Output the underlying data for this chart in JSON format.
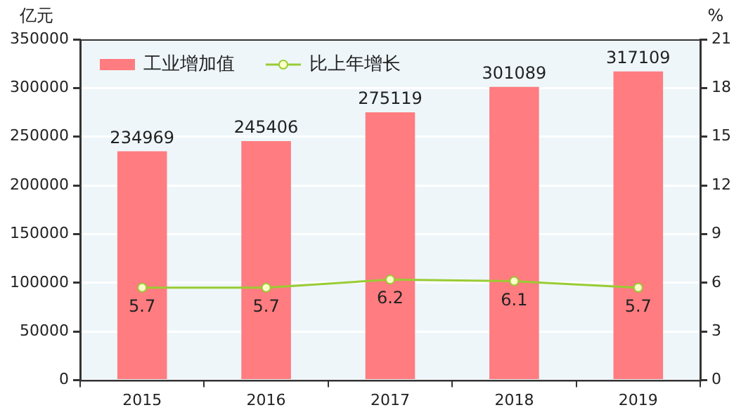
{
  "chart_data": {
    "type": "bar",
    "categories": [
      "2015",
      "2016",
      "2017",
      "2018",
      "2019"
    ],
    "ylabel": "亿元",
    "y2label": "%",
    "series": [
      {
        "name": "工业增加值",
        "color": "#ff7c80",
        "values": [
          234969,
          245406,
          275119,
          301089,
          317109
        ]
      },
      {
        "name": "比上年增长",
        "type": "line",
        "axis": "y2",
        "color": "#99cc33",
        "values": [
          5.7,
          5.7,
          6.2,
          6.1,
          5.7
        ]
      }
    ],
    "ylim": [
      0,
      350000
    ],
    "yticks": [
      0,
      50000,
      100000,
      150000,
      200000,
      250000,
      300000,
      350000
    ],
    "y2lim": [
      0,
      21
    ],
    "y2ticks": [
      0,
      3,
      6,
      9,
      12,
      15,
      18,
      21
    ],
    "data_labels": true,
    "grid": "y",
    "legend": "top left",
    "marker": "circle",
    "line_style": "solid"
  }
}
